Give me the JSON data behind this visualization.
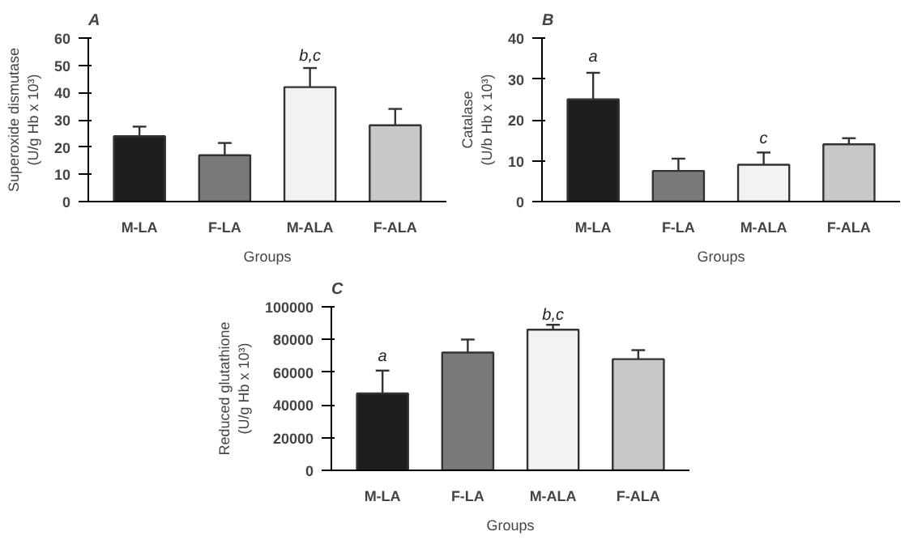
{
  "chart_data": [
    {
      "type": "bar",
      "title": "A",
      "xlabel": "Groups",
      "ylabel": "Superoxide dismutase\n(U/g Hb x 10³)",
      "categories": [
        "M-LA",
        "F-LA",
        "M-ALA",
        "F-ALA"
      ],
      "values": [
        24,
        17,
        42,
        28
      ],
      "errors": [
        3.5,
        4.5,
        7,
        6
      ],
      "colors": [
        "#1e1e1e",
        "#7a7a7a",
        "#f2f2f2",
        "#c8c8c8"
      ],
      "ylim": [
        0,
        60
      ],
      "yticks": [
        0,
        10,
        20,
        30,
        40,
        50,
        60
      ],
      "grid": false,
      "annotations": [
        {
          "text": "b,c",
          "x": "M-ALA",
          "y": 50
        }
      ]
    },
    {
      "type": "bar",
      "title": "B",
      "xlabel": "Groups",
      "ylabel": "Catalase\n(U/b Hb x 10³)",
      "categories": [
        "M-LA",
        "F-LA",
        "M-ALA",
        "F-ALA"
      ],
      "values": [
        25,
        7.5,
        9,
        14
      ],
      "errors": [
        6.5,
        3,
        3,
        1.5
      ],
      "colors": [
        "#1e1e1e",
        "#7a7a7a",
        "#f2f2f2",
        "#c8c8c8"
      ],
      "ylim": [
        0,
        40
      ],
      "yticks": [
        0,
        10,
        20,
        30,
        40
      ],
      "grid": false,
      "annotations": [
        {
          "text": "a",
          "x": "M-LA",
          "y": 33
        },
        {
          "text": "c",
          "x": "M-ALA",
          "y": 13
        }
      ]
    },
    {
      "type": "bar",
      "title": "C",
      "xlabel": "Groups",
      "ylabel": "Reduced glutathione\n(U/g Hb x 10³)",
      "categories": [
        "M-LA",
        "F-LA",
        "M-ALA",
        "F-ALA"
      ],
      "values": [
        47000,
        72000,
        86000,
        68000
      ],
      "errors": [
        14000,
        8000,
        3000,
        5500
      ],
      "colors": [
        "#1e1e1e",
        "#7a7a7a",
        "#f2f2f2",
        "#c8c8c8"
      ],
      "ylim": [
        0,
        100000
      ],
      "yticks": [
        0,
        20000,
        40000,
        60000,
        80000,
        100000
      ],
      "grid": false,
      "annotations": [
        {
          "text": "a",
          "x": "M-LA",
          "y": 64000
        },
        {
          "text": "b,c",
          "x": "M-ALA",
          "y": 89000
        }
      ]
    }
  ]
}
